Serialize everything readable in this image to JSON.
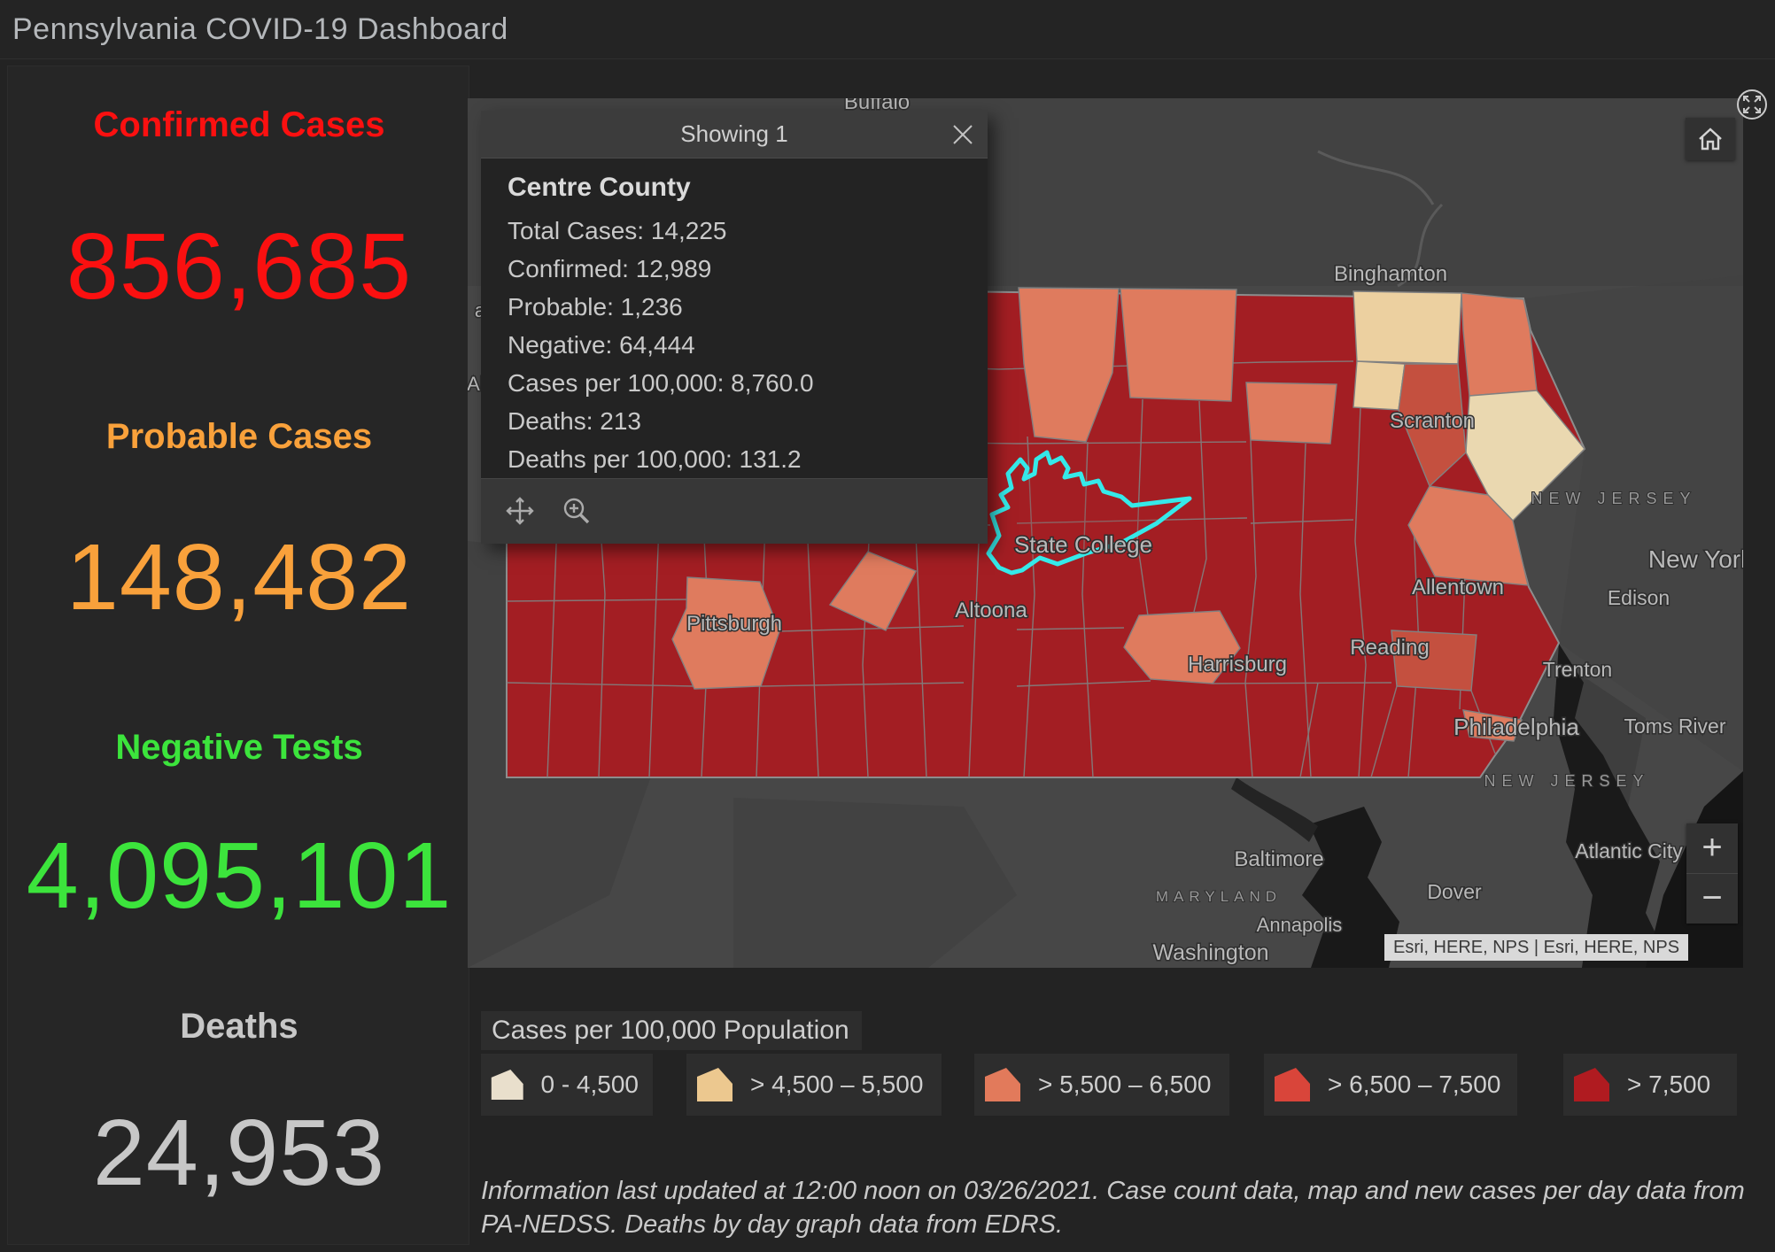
{
  "header": {
    "title": "Pennsylvania COVID-19 Dashboard"
  },
  "stats": {
    "confirmed": {
      "label": "Confirmed Cases",
      "value": "856,685",
      "color": "#fb1010"
    },
    "probable": {
      "label": "Probable Cases",
      "value": "148,482",
      "color": "#f9a13b"
    },
    "negative": {
      "label": "Negative Tests",
      "value": "4,095,101",
      "color": "#3ce43c"
    },
    "deaths": {
      "label": "Deaths",
      "value": "24,953",
      "color": "#c7c7c7"
    }
  },
  "map": {
    "popup": {
      "header": "Showing 1",
      "county": "Centre County",
      "rows": [
        "Total Cases: 14,225",
        "Confirmed: 12,989",
        "Probable: 1,236",
        "Negative: 64,444",
        "Cases per 100,000: 8,760.0",
        "Deaths: 213",
        "Deaths per 100,000: 131.2"
      ]
    },
    "controls": {
      "zoom_in": "+",
      "zoom_out": "−"
    },
    "attribution": "Esri, HERE, NPS | Esri, HERE, NPS",
    "highlight_color": "#35e9e9",
    "labels": [
      {
        "id": "buffalo",
        "text": "Buffalo"
      },
      {
        "id": "binghamton",
        "text": "Binghamton"
      },
      {
        "id": "scranton",
        "text": "Scranton"
      },
      {
        "id": "nj_upper",
        "text": "NEW JERSEY"
      },
      {
        "id": "new_york",
        "text": "New York"
      },
      {
        "id": "edison",
        "text": "Edison"
      },
      {
        "id": "allentown",
        "text": "Allentown"
      },
      {
        "id": "trenton",
        "text": "Trenton"
      },
      {
        "id": "reading",
        "text": "Reading"
      },
      {
        "id": "philadelphia",
        "text": "Philadelphia"
      },
      {
        "id": "toms_river",
        "text": "Toms River"
      },
      {
        "id": "nj_lower",
        "text": "NEW JERSEY"
      },
      {
        "id": "harrisburg",
        "text": "Harrisburg"
      },
      {
        "id": "altoona",
        "text": "Altoona"
      },
      {
        "id": "pittsburgh",
        "text": "Pittsburgh"
      },
      {
        "id": "state_college",
        "text": "State College"
      },
      {
        "id": "baltimore",
        "text": "Baltimore"
      },
      {
        "id": "maryland",
        "text": "MARYLAND"
      },
      {
        "id": "annapolis",
        "text": "Annapolis"
      },
      {
        "id": "washington",
        "text": "Washington"
      },
      {
        "id": "dover",
        "text": "Dover"
      },
      {
        "id": "atlantic_city",
        "text": "Atlantic City"
      },
      {
        "id": "frag_a",
        "text": "a"
      },
      {
        "id": "frag_ak",
        "text": "Ak"
      }
    ]
  },
  "legend": {
    "title": "Cases per 100,000 Population",
    "items": [
      {
        "label": "0 - 4,500",
        "color": "#e9dfcc"
      },
      {
        "label": "> 4,500 – 5,500",
        "color": "#ecc88f"
      },
      {
        "label": "> 5,500 – 6,500",
        "color": "#e27a5b"
      },
      {
        "label": "> 6,500 – 7,500",
        "color": "#d9453a"
      },
      {
        "label": "> 7,500",
        "color": "#b01b20"
      }
    ]
  },
  "source_note": "Information last updated at 12:00 noon on 03/26/2021. Case count data, map and new cases per day data from PA-NEDSS.  Deaths by day graph data from EDRS."
}
